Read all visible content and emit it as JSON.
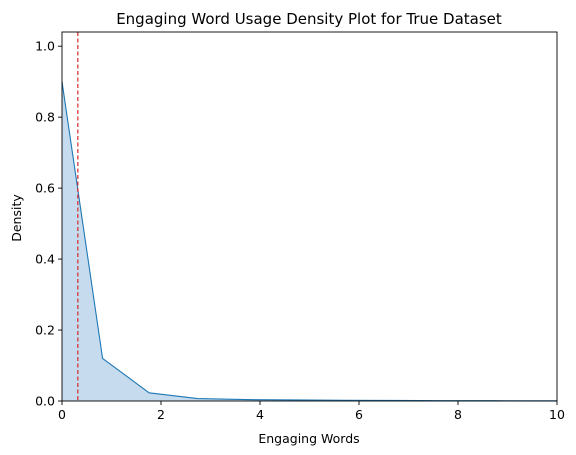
{
  "chart_data": {
    "type": "area",
    "title": "Engaging Word Usage Density Plot for True Dataset",
    "xlabel": "Engaging Words",
    "ylabel": "Density",
    "xlim": [
      0,
      10
    ],
    "ylim": [
      0,
      1.04
    ],
    "xticks": [
      0,
      2,
      4,
      6,
      8,
      10
    ],
    "xtick_labels": [
      "0",
      "2",
      "4",
      "6",
      "8",
      "10"
    ],
    "yticks": [
      0.0,
      0.2,
      0.4,
      0.6,
      0.8,
      1.0
    ],
    "ytick_labels": [
      "0.0",
      "0.2",
      "0.4",
      "0.6",
      "0.8",
      "1.0"
    ],
    "grid": false,
    "series": [
      {
        "x": [
          0,
          0.82,
          1.76,
          2.74,
          3.72,
          4.7,
          5.7,
          6.7,
          7.7,
          8.7,
          9.7,
          10
        ],
        "y": [
          0.9,
          0.12,
          0.023,
          0.007,
          0.004,
          0.003,
          0.002,
          0.0015,
          0.001,
          0.0008,
          0.0005,
          0.0005
        ]
      }
    ],
    "reference_line": {
      "orientation": "vertical",
      "x": 0.32,
      "style": "dashed"
    },
    "colors": {
      "line": "#1f77b4",
      "fill": "#c6dbee",
      "reference_line": "#d62728",
      "axes": "#000000"
    }
  }
}
